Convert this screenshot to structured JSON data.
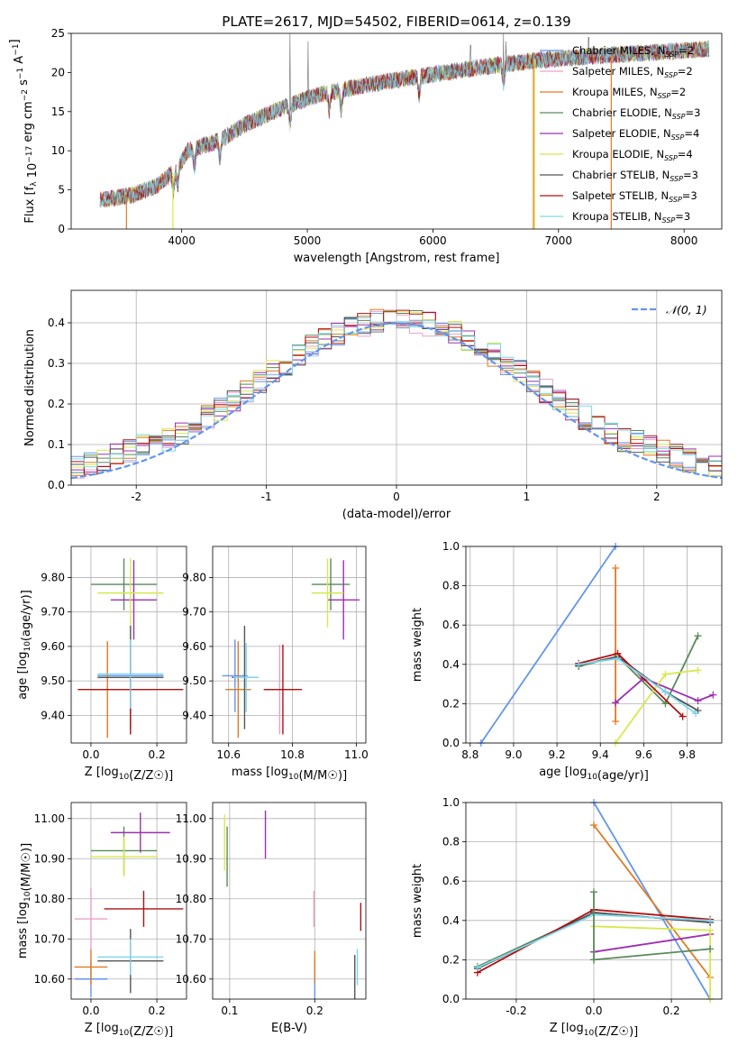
{
  "figure": {
    "title": "PLATE=2617, MJD=54502, FIBERID=0614, z=0.139"
  },
  "model_legend": [
    {
      "name": "Chabrier MILES",
      "nssp": "2",
      "color": "#6495ed"
    },
    {
      "name": "Salpeter MILES",
      "nssp": "2",
      "color": "#e9a0c8"
    },
    {
      "name": "Kroupa MILES",
      "nssp": "2",
      "color": "#e07b24"
    },
    {
      "name": "Chabrier ELODIE",
      "nssp": "3",
      "color": "#5a8a5a"
    },
    {
      "name": "Salpeter ELODIE",
      "nssp": "4",
      "color": "#9b30b0"
    },
    {
      "name": "Kroupa ELODIE",
      "nssp": "4",
      "color": "#d8e84c"
    },
    {
      "name": "Chabrier STELIB",
      "nssp": "3",
      "color": "#555555"
    },
    {
      "name": "Salpeter STELIB",
      "nssp": "3",
      "color": "#b01010"
    },
    {
      "name": "Kroupa STELIB",
      "nssp": "3",
      "color": "#7fd6ee"
    }
  ],
  "chart_data": [
    {
      "id": "spectrum",
      "type": "line",
      "xlabel": "wavelength [Angstrom, rest frame]",
      "ylabel": "Flux [f_λ 10^-17 erg cm^-2 s^-1 A^-1]",
      "xlim": [
        3120,
        8300
      ],
      "ylim": [
        0,
        25
      ],
      "xticks": [
        4000,
        5000,
        6000,
        7000,
        8000
      ],
      "yticks": [
        0,
        5,
        10,
        15,
        20,
        25
      ],
      "grid": false,
      "legend": "upper right",
      "continuum": [
        [
          3350,
          3.7
        ],
        [
          3600,
          4.3
        ],
        [
          3800,
          5.5
        ],
        [
          3950,
          7.5
        ],
        [
          4050,
          10.0
        ],
        [
          4300,
          11.3
        ],
        [
          4500,
          13.3
        ],
        [
          4800,
          15.5
        ],
        [
          5100,
          17.2
        ],
        [
          5500,
          18.5
        ],
        [
          5900,
          19.5
        ],
        [
          6300,
          20.5
        ],
        [
          6800,
          21.5
        ],
        [
          7200,
          22.0
        ],
        [
          7500,
          22.3
        ],
        [
          8000,
          22.8
        ],
        [
          8200,
          23.0
        ]
      ],
      "absorption_lines": [
        3934,
        3969,
        4101,
        4304,
        4861,
        5175,
        5270,
        5890,
        6563
      ],
      "spikes": [
        [
          4861,
          27
        ],
        [
          5005,
          24
        ],
        [
          6300,
          23.5
        ],
        [
          6563,
          25
        ],
        [
          6583,
          24
        ],
        [
          7240,
          24.5
        ],
        [
          7900,
          23.5
        ]
      ],
      "drop_lines": [
        {
          "x": 3930,
          "color": "#d8e84c"
        },
        {
          "x": 6800,
          "color": "#e07b24"
        },
        {
          "x": 6810,
          "color": "#d8e84c"
        },
        {
          "x": 7420,
          "color": "#e07b24"
        },
        {
          "x": 3560,
          "color": "#e07b24"
        }
      ]
    },
    {
      "id": "residuals",
      "type": "step",
      "xlabel": "(data-model)/error",
      "ylabel": "Normed distribution",
      "xlim": [
        -2.5,
        2.5
      ],
      "ylim": [
        0,
        0.48
      ],
      "xticks": [
        -2,
        -1,
        0,
        1,
        2
      ],
      "yticks": [
        0.0,
        0.1,
        0.2,
        0.3,
        0.4
      ],
      "grid": true,
      "legend": "upper right",
      "curve_label": "𝒩(0, 1)",
      "curve_color": "#6495ed",
      "bin_width": 0.1
    },
    {
      "id": "age-vs-Z",
      "type": "errorbar",
      "xlabel": "Z [log10(Z/Z☉)]",
      "ylabel": "age [log10(age/yr)]",
      "xlim": [
        -0.06,
        0.29
      ],
      "ylim": [
        9.32,
        9.89
      ],
      "xticks": [
        0.0,
        0.2
      ],
      "yticks": [
        9.4,
        9.5,
        9.6,
        9.7,
        9.8
      ],
      "grid": true,
      "points": [
        {
          "x": 0.12,
          "xerr": 0.1,
          "y": 9.515,
          "yerr": 0.105,
          "color": "#6495ed"
        },
        {
          "x": 0.05,
          "xerr": 0.05,
          "y": 9.475,
          "yerr": 0.14,
          "color": "#e07b24"
        },
        {
          "x": 0.12,
          "xerr": 0.07,
          "y": 9.475,
          "yerr": 0.13,
          "color": "#e9a0c8"
        },
        {
          "x": 0.1,
          "xerr": 0.1,
          "y": 9.78,
          "yerr": 0.075,
          "color": "#5a8a5a"
        },
        {
          "x": 0.13,
          "xerr": 0.07,
          "y": 9.735,
          "yerr": 0.115,
          "color": "#9b30b0"
        },
        {
          "x": 0.12,
          "xerr": 0.1,
          "y": 9.755,
          "yerr": 0.1,
          "color": "#d8e84c"
        },
        {
          "x": 0.12,
          "xerr": 0.1,
          "y": 9.51,
          "yerr": 0.15,
          "color": "#555555"
        },
        {
          "x": 0.12,
          "xerr": 0.16,
          "y": 9.475,
          "yerr": 0.13,
          "color": "#b01010"
        },
        {
          "x": 0.12,
          "xerr": 0.1,
          "y": 9.52,
          "yerr": 0.1,
          "color": "#7fd6ee"
        }
      ]
    },
    {
      "id": "age-vs-mass",
      "type": "errorbar",
      "xlabel": "mass [log10(M/M☉)]",
      "ylabel": "",
      "xlim": [
        10.55,
        11.03
      ],
      "ylim": [
        9.32,
        9.89
      ],
      "xticks": [
        10.6,
        10.8,
        11.0
      ],
      "yticks": [
        9.4,
        9.5,
        9.6,
        9.7,
        9.8
      ],
      "grid": true,
      "points": [
        {
          "x": 10.62,
          "xerr": 0.04,
          "y": 9.515,
          "yerr": 0.105,
          "color": "#6495ed"
        },
        {
          "x": 10.63,
          "xerr": 0.04,
          "y": 9.475,
          "yerr": 0.14,
          "color": "#e07b24"
        },
        {
          "x": 10.76,
          "xerr": 0.05,
          "y": 9.475,
          "yerr": 0.13,
          "color": "#e9a0c8"
        },
        {
          "x": 10.92,
          "xerr": 0.06,
          "y": 9.78,
          "yerr": 0.075,
          "color": "#5a8a5a"
        },
        {
          "x": 10.96,
          "xerr": 0.05,
          "y": 9.735,
          "yerr": 0.115,
          "color": "#9b30b0"
        },
        {
          "x": 10.91,
          "xerr": 0.05,
          "y": 9.755,
          "yerr": 0.1,
          "color": "#d8e84c"
        },
        {
          "x": 10.65,
          "xerr": 0.04,
          "y": 9.51,
          "yerr": 0.15,
          "color": "#555555"
        },
        {
          "x": 10.77,
          "xerr": 0.06,
          "y": 9.475,
          "yerr": 0.13,
          "color": "#b01010"
        },
        {
          "x": 10.655,
          "xerr": 0.04,
          "y": 9.51,
          "yerr": 0.1,
          "color": "#7fd6ee"
        }
      ]
    },
    {
      "id": "weight-vs-age",
      "type": "line",
      "xlabel": "age [log10(age/yr)]",
      "ylabel": "mass weight",
      "xlim": [
        8.78,
        9.96
      ],
      "ylim": [
        0,
        1.0
      ],
      "xticks": [
        8.8,
        9.0,
        9.2,
        9.4,
        9.6,
        9.8
      ],
      "yticks": [
        0.0,
        0.2,
        0.4,
        0.6,
        0.8,
        1.0
      ],
      "grid": true,
      "series": [
        {
          "color": "#6495ed",
          "points": [
            [
              8.85,
              0.0
            ],
            [
              9.47,
              1.0
            ]
          ]
        },
        {
          "color": "#e07b24",
          "points": [
            [
              9.47,
              0.89
            ],
            [
              9.47,
              0.11
            ]
          ]
        },
        {
          "color": "#5a8a5a",
          "points": [
            [
              9.3,
              0.39
            ],
            [
              9.48,
              0.44
            ],
            [
              9.7,
              0.2
            ],
            [
              9.85,
              0.545
            ]
          ]
        },
        {
          "color": "#9b30b0",
          "points": [
            [
              9.47,
              0.205
            ],
            [
              9.6,
              0.33
            ],
            [
              9.85,
              0.215
            ],
            [
              9.92,
              0.245
            ]
          ]
        },
        {
          "color": "#d8e84c",
          "points": [
            [
              9.47,
              0.0
            ],
            [
              9.7,
              0.35
            ],
            [
              9.85,
              0.37
            ]
          ]
        },
        {
          "color": "#555555",
          "points": [
            [
              9.3,
              0.395
            ],
            [
              9.48,
              0.44
            ],
            [
              9.7,
              0.26
            ],
            [
              9.85,
              0.165
            ]
          ]
        },
        {
          "color": "#b01010",
          "points": [
            [
              9.3,
              0.405
            ],
            [
              9.48,
              0.455
            ],
            [
              9.78,
              0.135
            ]
          ]
        },
        {
          "color": "#7fd6ee",
          "points": [
            [
              9.3,
              0.4
            ],
            [
              9.48,
              0.43
            ],
            [
              9.7,
              0.26
            ],
            [
              9.84,
              0.15
            ]
          ]
        }
      ]
    },
    {
      "id": "mass-vs-Z",
      "type": "errorbar",
      "xlabel": "Z [log10(Z/Z☉)]",
      "ylabel": "mass [log10(M/M☉)]",
      "xlim": [
        -0.06,
        0.29
      ],
      "ylim": [
        10.55,
        11.04
      ],
      "xticks": [
        0.0,
        0.2
      ],
      "yticks": [
        10.6,
        10.7,
        10.8,
        10.9,
        11.0
      ],
      "grid": true,
      "points": [
        {
          "x": 0.0,
          "xerr": 0.05,
          "y": 10.6,
          "yerr": 0.045,
          "color": "#6495ed"
        },
        {
          "x": 0.0,
          "xerr": 0.05,
          "y": 10.63,
          "yerr": 0.045,
          "color": "#e07b24"
        },
        {
          "x": 0.0,
          "xerr": 0.05,
          "y": 10.75,
          "yerr": 0.075,
          "color": "#e9a0c8"
        },
        {
          "x": 0.1,
          "xerr": 0.1,
          "y": 10.92,
          "yerr": 0.06,
          "color": "#5a8a5a"
        },
        {
          "x": 0.15,
          "xerr": 0.09,
          "y": 10.965,
          "yerr": 0.05,
          "color": "#9b30b0"
        },
        {
          "x": 0.1,
          "xerr": 0.1,
          "y": 10.905,
          "yerr": 0.05,
          "color": "#d8e84c"
        },
        {
          "x": 0.12,
          "xerr": 0.1,
          "y": 10.645,
          "yerr": 0.08,
          "color": "#555555"
        },
        {
          "x": 0.16,
          "xerr": 0.12,
          "y": 10.775,
          "yerr": 0.045,
          "color": "#b01010"
        },
        {
          "x": 0.12,
          "xerr": 0.1,
          "y": 10.655,
          "yerr": 0.045,
          "color": "#7fd6ee"
        }
      ]
    },
    {
      "id": "mass-vs-EBV",
      "type": "errorbar",
      "xlabel": "E(B-V)",
      "ylabel": "",
      "xlim": [
        0.08,
        0.26
      ],
      "ylim": [
        10.55,
        11.04
      ],
      "xticks": [
        0.1,
        0.2
      ],
      "yticks": [
        10.6,
        10.7,
        10.8,
        10.9,
        11.0
      ],
      "grid": true,
      "points": [
        {
          "x": 0.2,
          "xerr": 0.0,
          "y": 10.6,
          "yerr": 0.05,
          "color": "#6495ed"
        },
        {
          "x": 0.2,
          "xerr": 0.0,
          "y": 10.63,
          "yerr": 0.04,
          "color": "#e07b24"
        },
        {
          "x": 0.199,
          "xerr": 0.0,
          "y": 10.775,
          "yerr": 0.045,
          "color": "#e9a0c8"
        },
        {
          "x": 0.097,
          "xerr": 0.0,
          "y": 10.905,
          "yerr": 0.075,
          "color": "#5a8a5a"
        },
        {
          "x": 0.142,
          "xerr": 0.0,
          "y": 10.96,
          "yerr": 0.06,
          "color": "#9b30b0"
        },
        {
          "x": 0.094,
          "xerr": 0.0,
          "y": 10.94,
          "yerr": 0.07,
          "color": "#d8e84c"
        },
        {
          "x": 0.247,
          "xerr": 0.0,
          "y": 10.605,
          "yerr": 0.055,
          "color": "#555555"
        },
        {
          "x": 0.254,
          "xerr": 0.0,
          "y": 10.755,
          "yerr": 0.035,
          "color": "#b01010"
        },
        {
          "x": 0.25,
          "xerr": 0.0,
          "y": 10.63,
          "yerr": 0.045,
          "color": "#7fd6ee"
        }
      ]
    },
    {
      "id": "weight-vs-Z",
      "type": "line",
      "xlabel": "Z [log10(Z/Z☉)]",
      "ylabel": "mass weight",
      "xlim": [
        -0.33,
        0.33
      ],
      "ylim": [
        0,
        1.0
      ],
      "xticks": [
        -0.2,
        0.0,
        0.2
      ],
      "yticks": [
        0.0,
        0.2,
        0.4,
        0.6,
        0.8,
        1.0
      ],
      "grid": true,
      "series": [
        {
          "color": "#6495ed",
          "points": [
            [
              0.0,
              1.0
            ],
            [
              0.3,
              0.0
            ]
          ]
        },
        {
          "color": "#e07b24",
          "points": [
            [
              0.0,
              0.885
            ],
            [
              0.3,
              0.11
            ]
          ]
        },
        {
          "color": "#5a8a5a",
          "points": [
            [
              -0.3,
              0.165
            ],
            [
              0.0,
              0.44
            ],
            [
              0.3,
              0.39
            ]
          ]
        },
        {
          "color": "#9b30b0",
          "points": [
            [
              0.0,
              0.24
            ],
            [
              0.3,
              0.33
            ]
          ]
        },
        {
          "color": "#d8e84c",
          "points": [
            [
              0.0,
              0.37
            ],
            [
              0.3,
              0.35
            ],
            [
              0.3,
              0.0
            ]
          ]
        },
        {
          "color": "#555555",
          "points": [
            [
              -0.3,
              0.155
            ],
            [
              0.0,
              0.44
            ],
            [
              0.3,
              0.39
            ]
          ]
        },
        {
          "color": "#b01010",
          "points": [
            [
              -0.3,
              0.135
            ],
            [
              0.0,
              0.455
            ],
            [
              0.3,
              0.405
            ]
          ]
        },
        {
          "color": "#7fd6ee",
          "points": [
            [
              -0.3,
              0.16
            ],
            [
              0.0,
              0.43
            ],
            [
              0.3,
              0.4
            ]
          ]
        },
        {
          "color": "#5a8a5a",
          "points": [
            [
              0.0,
              0.2
            ],
            [
              0.3,
              0.255
            ]
          ]
        },
        {
          "color": "#5a8a5a",
          "points": [
            [
              0.0,
              0.545
            ],
            [
              0.0,
              0.2
            ]
          ]
        }
      ]
    }
  ]
}
